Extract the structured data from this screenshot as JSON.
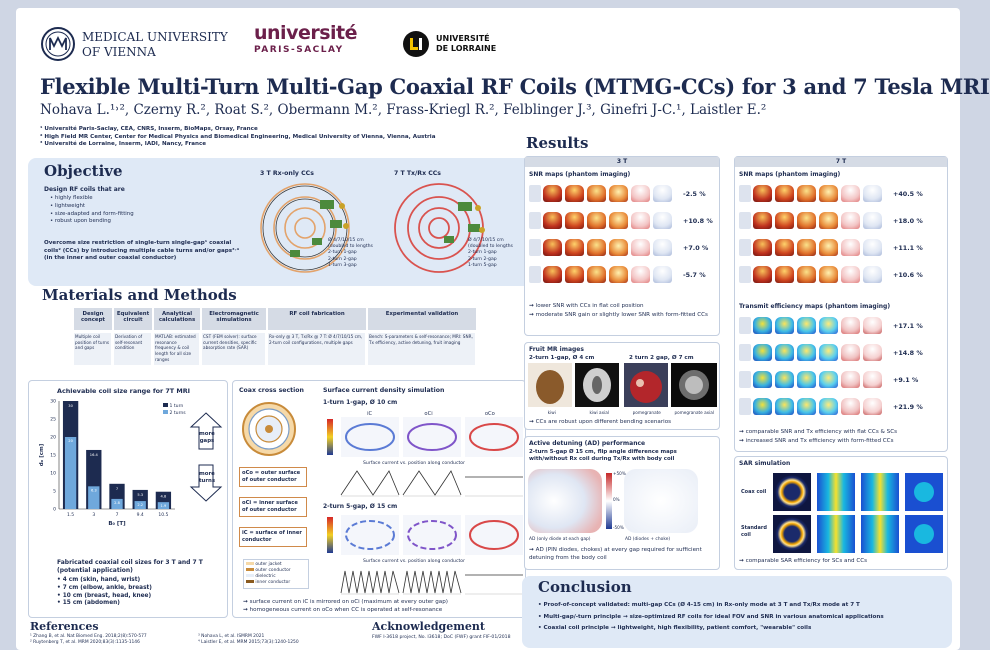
{
  "header": {
    "logo_muv_line1": "MEDICAL UNIVERSITY",
    "logo_muv_line2": "OF VIENNA",
    "logo_ups_line1": "université",
    "logo_ups_line2": "PARIS-SACLAY",
    "logo_ul_line1": "UNIVERSITÉ",
    "logo_ul_line2": "DE LORRAINE",
    "title": "Flexible Multi-Turn Multi-Gap Coaxial RF Coils (MTMG-CCs) for 3 and 7 Tesla MRI",
    "authors": "Nohava L.¹˒², Czerny R.², Roat S.², Obermann M.², Frass-Kriegl R.², Felblinger J.³, Ginefri J-C.¹, Laistler E.²",
    "affiliations": [
      "¹ Université Paris-Saclay, CEA, CNRS, Inserm, BioMaps, Orsay, France",
      "² High Field MR Center, Center for Medical Physics and Biomedical Engineering, Medical University of Vienna, Vienna, Austria",
      "³ Université de Lorraine, Inserm, IADI, Nancy, France"
    ]
  },
  "objective": {
    "heading": "Objective",
    "design_intro": "Design RF coils that are",
    "bullets": [
      "highly flexible",
      "lightweight",
      "size-adapted and form-fitting",
      "robust upon bending"
    ],
    "overcome": "Overcome size restriction of single-turn single-gap¹ coaxial coils² (CCs) by introducing multiple cable turns and/or gaps³˒⁴ (in the inner and outer coaxial conductor)",
    "img_label_3t": "3 T Rx-only CCs",
    "img_label_7t": "7 T Tx/Rx CCs",
    "legend_3t": [
      "Ø 4/7/10/15 cm",
      "(doubled to lengths",
      "2-turn 1-gap",
      "2-turn 2-gap",
      "1-turn 3-gap"
    ],
    "legend_7t": [
      "Ø 4/7/10/15 cm",
      "(doubled to lengths",
      "2-turn 1-gap",
      "2-turn 2-gap",
      "1-turn 5-gap"
    ]
  },
  "methods": {
    "heading": "Materials and Methods",
    "columns": [
      {
        "title": "Design concept",
        "body": "Multiple coil position of turns and gaps"
      },
      {
        "title": "Equivalent circuit",
        "body": "Derivation of self-resonant condition"
      },
      {
        "title": "Analytical calculations",
        "body": "MATLAB: estimated resonance frequency & coil length for all size ranges"
      },
      {
        "title": "Electromagnetic simulations",
        "body": "CST (FEM solver): surface current densities, specific absorption rate (SAR)"
      },
      {
        "title": "RF coil fabrication",
        "body": "Rx-only @ 3 T, Tx/Rx @ 7 T: Ø 4/7/10/15 cm, 2-turn coil configurations, multiple gaps"
      },
      {
        "title": "Experimental validation",
        "body": "Bench: S-parameters & self-resonance; MRI: SNR, Tx efficiency, active detuning, fruit imaging"
      }
    ]
  },
  "size_chart": {
    "title": "Achievable coil size range for 7T MRI",
    "ylabel": "dₒ [cm]",
    "xlabel": "B₀ [T]",
    "legend": [
      "1 turn",
      "2 turns"
    ],
    "label_more_gaps": "more gaps",
    "label_more_turns": "more turns",
    "fabricated_title": "Fabricated coaxial coil sizes for 3 T and 7 T (potential application)",
    "fabricated": [
      "4 cm (skin, hand, wrist)",
      "7 cm (elbow, ankle, breast)",
      "10 cm (breast, head, knee)",
      "15 cm (abdomen)"
    ]
  },
  "chart_data": {
    "type": "bar",
    "title": "Achievable coil size range for 7T MRI",
    "xlabel": "B₀ [T]",
    "ylabel": "dₒ [cm]",
    "categories": [
      "1.5",
      "3",
      "7",
      "9.4",
      "10.5"
    ],
    "ylim": [
      0,
      30
    ],
    "series": [
      {
        "name": "1 turn",
        "values": [
          30,
          16.4,
          7.0,
          5.3,
          4.8
        ]
      },
      {
        "name": "2 turns",
        "values": [
          20,
          6.3,
          2.8,
          2.2,
          1.9
        ]
      }
    ],
    "legend_position": "top-right"
  },
  "coax": {
    "title": "Coax cross section",
    "label_oco": "oCo = outer surface of outer conductor",
    "label_ici": "oCi = inner surface of outer conductor",
    "label_ic": "iC = surface of inner conductor",
    "layers": [
      "outer jacket",
      "outer conductor",
      "dielectric",
      "inner conductor"
    ],
    "sim_title": "Surface current density simulation",
    "sim_1": "1-turn 1-gap, Ø 10 cm",
    "sim_2": "2-turn 5-gap, Ø 15 cm",
    "col_labels": [
      "iC",
      "oCi",
      "oCo"
    ],
    "plot_caption": "Surface current vs. position along conductor",
    "concl_1": "surface current on iC is mirrored on oCi (maximum at every outer gap)",
    "concl_2": "homogeneous current on oCo when CC is operated at self-resonance"
  },
  "results": {
    "heading": "Results",
    "col_3t": "3 T",
    "col_7t": "7 T",
    "snr_title": "SNR maps (phantom imaging)",
    "snr_pct_3t": [
      "-2.5 %",
      "+10.8 %",
      "+7.0 %",
      "-5.7 %"
    ],
    "snr_pct_7t": [
      "+40.5 %",
      "+18.0 %",
      "+11.1 %",
      "+10.6 %"
    ],
    "snr_concl_1": "lower SNR with CCs in flat coil position",
    "snr_concl_2": "moderate SNR gain or slightly lower SNR with form-fitted CCs",
    "tx_title": "Transmit efficiency maps (phantom imaging)",
    "tx_pct": [
      "+17.1 %",
      "+14.8 %",
      "+9.1 %",
      "+21.9 %"
    ],
    "tx_concl_1": "comparable SNR and Tx efficiency with flat CCs & SCs",
    "tx_concl_2": "increased SNR and Tx efficiency with form-fitted CCs",
    "fruit_title": "Fruit MR images",
    "fruit_a": "2-turn 1-gap, Ø 4 cm",
    "fruit_b": "2 turn 2 gap, Ø 7 cm",
    "fruit_caps": [
      "kiwi",
      "kiwi axial",
      "pomegranate",
      "pomegranate axial"
    ],
    "fruit_concl": "CCs are robust upon different bending scenarios",
    "ad_title": "Active detuning (AD) performance",
    "ad_desc": "2-turn 5-gap Ø 15 cm, flip angle difference maps with/without Rx coil during Tx/Rx with body coil",
    "ad_cap_a": "AD (only diode at each gap)",
    "ad_cap_b": "AD (diodes + choke)",
    "ad_scale": [
      "+50%",
      "0%",
      "-50%"
    ],
    "ad_concl": "AD (PIN diodes, chokes) at every gap required for sufficient detuning from the body coil",
    "sar_title": "SAR simulation",
    "sar_rows": [
      "Coax coil",
      "Standard coil"
    ],
    "sar_concl": "comparable SAR efficiency for SCs and CCs"
  },
  "conclusion": {
    "heading": "Conclusion",
    "items": [
      "Proof-of-concept validated: multi-gap CCs (Ø 4-15 cm) in Rx-only mode at 3 T and Tx/Rx mode at 7 T",
      "Multi-gap/-turn principle → size-optimized RF coils for ideal FOV and SNR in various anatomical applications",
      "Coaxial coil principle → lightweight, high flexibility, patient comfort, \"wearable\" coils"
    ]
  },
  "references": {
    "heading": "References",
    "items": [
      "¹ Zhang B, et al. Nat Biomed Eng. 2018;2(8):570-577",
      "² Ruytenberg T, et al. MRM 2020;83(3):1135-1146",
      "³ Nohava L, et al. ISMRM 2021",
      "⁴ Laistler E, et al. MRM 2015;73(3):1240-1250"
    ]
  },
  "acknowledgement": {
    "heading": "Acknowledgement",
    "text": "FWF I-3618 project, No. I3618; DoC (FWF) grant FIF-01/2018"
  }
}
